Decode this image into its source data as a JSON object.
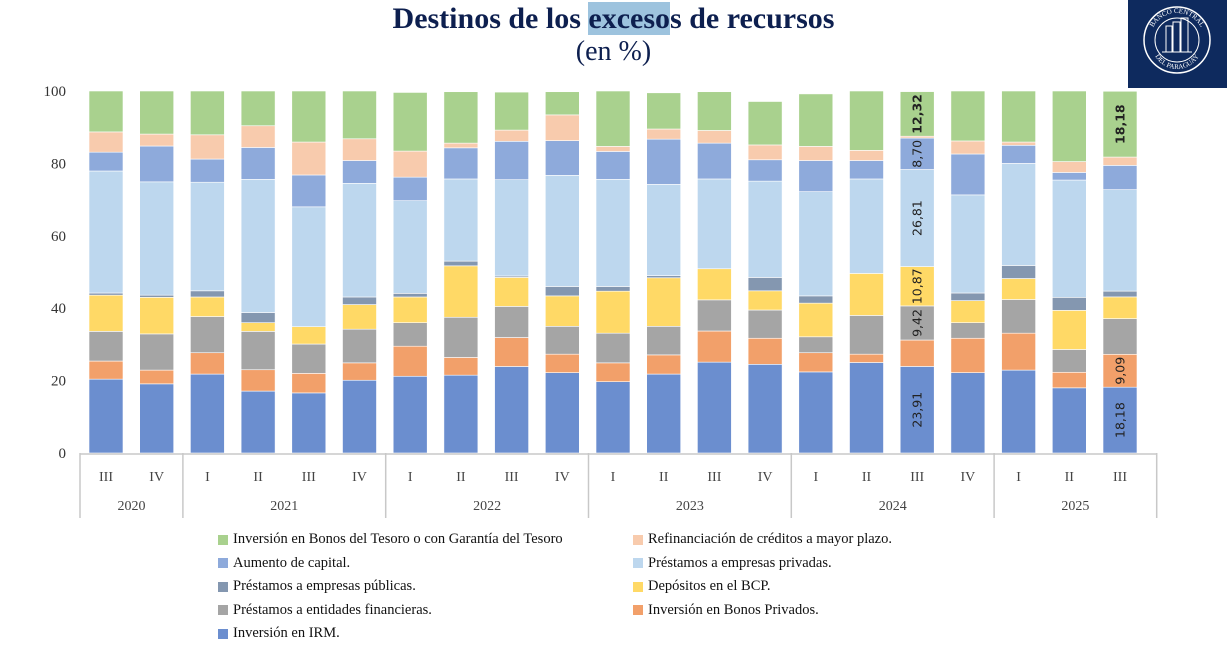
{
  "header": {
    "title_pre": "Destinos de los ",
    "title_highlight": "exceso",
    "title_post": "s de recursos",
    "subtitle": "(en %)",
    "logo_text_top": "BANCO CENTRAL",
    "logo_text_bottom": "DEL PARAGUAY"
  },
  "chart_data": {
    "type": "bar",
    "stacked": true,
    "title": "Destinos de los excesos de recursos (en %)",
    "xlabel": "",
    "ylabel": "",
    "ylim": [
      0,
      100
    ],
    "yticks": [
      "0",
      "20",
      "40",
      "60",
      "80",
      "100"
    ],
    "grid": false,
    "legend_position": "bottom",
    "categories": [
      "III",
      "IV",
      "I",
      "II",
      "III",
      "IV",
      "I",
      "II",
      "III",
      "IV",
      "I",
      "II",
      "III",
      "IV",
      "I",
      "II",
      "III",
      "IV",
      "I",
      "II",
      "III"
    ],
    "years": [
      {
        "label": "2020",
        "count": 2
      },
      {
        "label": "2021",
        "count": 4
      },
      {
        "label": "2022",
        "count": 4
      },
      {
        "label": "2023",
        "count": 4
      },
      {
        "label": "2024",
        "count": 4
      },
      {
        "label": "2025",
        "count": 3
      }
    ],
    "series": [
      {
        "name": "Inversión en IRM.",
        "color": "#6b8ecf",
        "values": [
          20.4,
          19.1,
          21.8,
          17.1,
          16.6,
          20.1,
          21.2,
          21.5,
          23.9,
          22.2,
          19.7,
          21.8,
          25.1,
          24.5,
          22.4,
          25.0,
          23.91,
          22.2,
          22.9,
          18.0,
          18.18
        ],
        "labels": {
          "16": "23,91",
          "20": "18,18"
        }
      },
      {
        "name": "Inversión en Bonos Privados.",
        "color": "#f2a06a",
        "values": [
          5.0,
          3.8,
          5.9,
          5.9,
          5.4,
          4.8,
          8.3,
          4.9,
          8.0,
          5.1,
          5.2,
          5.3,
          8.6,
          7.2,
          5.3,
          2.3,
          7.3,
          9.5,
          10.2,
          4.3,
          9.09
        ],
        "labels": {
          "20": "9,09"
        }
      },
      {
        "name": "Préstamos a entidades financieras.",
        "color": "#a5a5a5",
        "values": [
          8.2,
          10.0,
          10.0,
          10.6,
          8.1,
          9.3,
          6.5,
          11.1,
          8.6,
          7.7,
          8.2,
          7.9,
          8.6,
          7.8,
          4.4,
          10.7,
          9.42,
          4.3,
          9.3,
          6.3,
          9.85
        ],
        "labels": {
          "16": "9,42"
        }
      },
      {
        "name": "Depósitos en el BCP.",
        "color": "#ffd966",
        "values": [
          10.0,
          10.1,
          5.4,
          2.4,
          4.8,
          6.8,
          7.1,
          14.2,
          8.0,
          8.4,
          11.6,
          13.4,
          8.6,
          5.3,
          9.3,
          11.6,
          10.87,
          6.1,
          5.8,
          10.8,
          6.0
        ],
        "labels": {
          "16": "10,87"
        }
      },
      {
        "name": "Préstamos a empresas públicas.",
        "color": "#8497b0",
        "values": [
          0.6,
          0.6,
          1.7,
          2.8,
          0.0,
          2.1,
          1.0,
          1.3,
          0.4,
          2.6,
          1.3,
          0.6,
          0.0,
          3.7,
          2.0,
          0.0,
          0.0,
          2.1,
          3.6,
          3.6,
          1.6
        ],
        "labels": {}
      },
      {
        "name": "Préstamos a empresas privadas.",
        "color": "#bdd7ee",
        "values": [
          33.7,
          31.3,
          30.0,
          36.8,
          33.1,
          31.4,
          25.6,
          22.7,
          26.6,
          30.7,
          29.6,
          25.2,
          24.8,
          26.6,
          28.8,
          26.1,
          26.81,
          27.1,
          28.2,
          32.4,
          28.03
        ],
        "labels": {
          "16": "26,81"
        }
      },
      {
        "name": "Aumento de capital.",
        "color": "#8eaadb",
        "values": [
          5.2,
          9.9,
          6.4,
          8.8,
          8.8,
          6.3,
          6.5,
          8.6,
          10.6,
          9.6,
          7.7,
          12.5,
          9.9,
          5.9,
          8.6,
          5.1,
          8.7,
          11.3,
          5.0,
          2.1,
          6.7
        ],
        "labels": {
          "16": "8,70"
        }
      },
      {
        "name": "Refinanciación de créditos a mayor plazo.",
        "color": "#f8cbad",
        "values": [
          5.6,
          3.3,
          6.7,
          6.0,
          9.1,
          6.0,
          7.2,
          1.3,
          3.1,
          7.1,
          1.4,
          2.8,
          3.5,
          4.1,
          3.9,
          2.8,
          0.5,
          3.6,
          0.9,
          3.0,
          2.3
        ],
        "labels": {}
      },
      {
        "name": "Inversión en Bonos del Tesoro o con Garantía del Tesoro",
        "color": "#a9d18e",
        "values": [
          11.3,
          11.9,
          12.1,
          9.6,
          14.1,
          13.2,
          16.2,
          14.2,
          10.5,
          6.4,
          15.3,
          10.0,
          10.7,
          12.0,
          14.5,
          16.4,
          12.32,
          13.8,
          14.1,
          19.5,
          18.18
        ],
        "labels": {
          "16": "12,32",
          "20": "18,18"
        }
      }
    ]
  },
  "legend": {
    "left": [
      {
        "label": "Inversión en Bonos del Tesoro o con Garantía del Tesoro",
        "color": "#a9d18e"
      },
      {
        "label": "Aumento de capital.",
        "color": "#8eaadb"
      },
      {
        "label": "Préstamos a empresas públicas.",
        "color": "#8497b0"
      },
      {
        "label": "Préstamos a entidades financieras.",
        "color": "#a5a5a5"
      },
      {
        "label": "Inversión en IRM.",
        "color": "#6b8ecf"
      }
    ],
    "right": [
      {
        "label": "Refinanciación de créditos a mayor plazo.",
        "color": "#f8cbad"
      },
      {
        "label": "Préstamos a empresas privadas.",
        "color": "#bdd7ee"
      },
      {
        "label": "Depósitos en el BCP.",
        "color": "#ffd966"
      },
      {
        "label": "Inversión en Bonos Privados.",
        "color": "#f2a06a"
      }
    ]
  }
}
